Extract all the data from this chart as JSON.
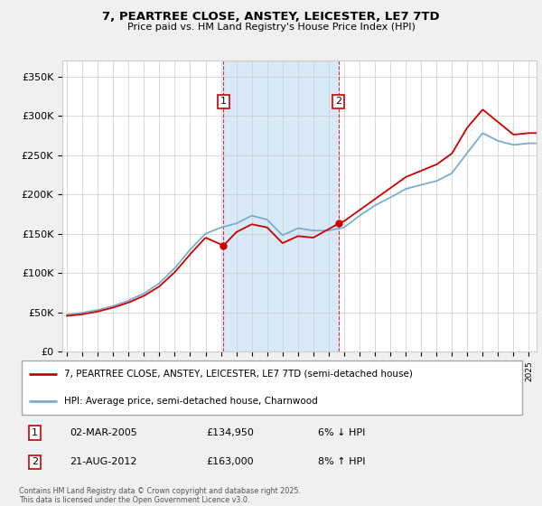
{
  "title": "7, PEARTREE CLOSE, ANSTEY, LEICESTER, LE7 7TD",
  "subtitle": "Price paid vs. HM Land Registry's House Price Index (HPI)",
  "ylabel_ticks": [
    "£0",
    "£50K",
    "£100K",
    "£150K",
    "£200K",
    "£250K",
    "£300K",
    "£350K"
  ],
  "ytick_values": [
    0,
    50000,
    100000,
    150000,
    200000,
    250000,
    300000,
    350000
  ],
  "ylim": [
    0,
    370000
  ],
  "xlim_start": 1994.7,
  "xlim_end": 2025.5,
  "sale1_date": 2005.17,
  "sale1_price": 134950,
  "sale2_date": 2012.64,
  "sale2_price": 163000,
  "legend_line1": "7, PEARTREE CLOSE, ANSTEY, LEICESTER, LE7 7TD (semi-detached house)",
  "legend_line2": "HPI: Average price, semi-detached house, Charnwood",
  "footer": "Contains HM Land Registry data © Crown copyright and database right 2025.\nThis data is licensed under the Open Government Licence v3.0.",
  "line_color_red": "#cc0000",
  "line_color_blue": "#7aadcf",
  "shaded_color": "#d8eaf7",
  "background_color": "#f0f0f0",
  "plot_bg_color": "#ffffff",
  "grid_color": "#cccccc",
  "vline_color": "#cc0000",
  "box_color": "#cc0000",
  "hpi_anchors": [
    [
      1995,
      47000
    ],
    [
      1996,
      49500
    ],
    [
      1997,
      53000
    ],
    [
      1998,
      58000
    ],
    [
      1999,
      65000
    ],
    [
      2000,
      74000
    ],
    [
      2001,
      87000
    ],
    [
      2002,
      106000
    ],
    [
      2003,
      130000
    ],
    [
      2004,
      150000
    ],
    [
      2005,
      158000
    ],
    [
      2006,
      163000
    ],
    [
      2007,
      173000
    ],
    [
      2008,
      168000
    ],
    [
      2009,
      148000
    ],
    [
      2010,
      157000
    ],
    [
      2011,
      154000
    ],
    [
      2012,
      154000
    ],
    [
      2013,
      158000
    ],
    [
      2014,
      173000
    ],
    [
      2015,
      186000
    ],
    [
      2016,
      196000
    ],
    [
      2017,
      207000
    ],
    [
      2018,
      212000
    ],
    [
      2019,
      217000
    ],
    [
      2020,
      227000
    ],
    [
      2021,
      253000
    ],
    [
      2022,
      278000
    ],
    [
      2023,
      268000
    ],
    [
      2024,
      263000
    ],
    [
      2025,
      265000
    ]
  ],
  "price_anchors": [
    [
      1995,
      45500
    ],
    [
      1996,
      47500
    ],
    [
      1997,
      51000
    ],
    [
      1998,
      56000
    ],
    [
      1999,
      62500
    ],
    [
      2000,
      71000
    ],
    [
      2001,
      83000
    ],
    [
      2002,
      101000
    ],
    [
      2003,
      124000
    ],
    [
      2004,
      145000
    ],
    [
      2005.17,
      134950
    ],
    [
      2006,
      152000
    ],
    [
      2007,
      162000
    ],
    [
      2008,
      158000
    ],
    [
      2009,
      138000
    ],
    [
      2010,
      147000
    ],
    [
      2011,
      145000
    ],
    [
      2012.64,
      163000
    ],
    [
      2013,
      166000
    ],
    [
      2014,
      180000
    ],
    [
      2015,
      194000
    ],
    [
      2016,
      208000
    ],
    [
      2017,
      222000
    ],
    [
      2018,
      230000
    ],
    [
      2019,
      238000
    ],
    [
      2020,
      252000
    ],
    [
      2021,
      285000
    ],
    [
      2022,
      308000
    ],
    [
      2023,
      292000
    ],
    [
      2024,
      276000
    ],
    [
      2025,
      278000
    ]
  ]
}
